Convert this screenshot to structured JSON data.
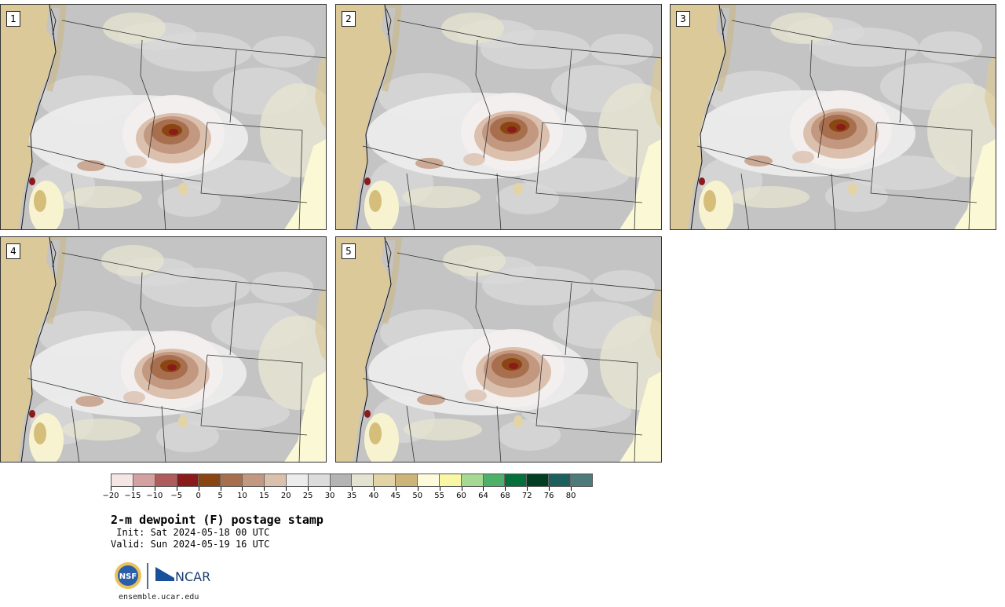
{
  "panels": [
    {
      "label": "1"
    },
    {
      "label": "2"
    },
    {
      "label": "3"
    },
    {
      "label": "4"
    },
    {
      "label": "5"
    }
  ],
  "colorbar": {
    "colors": [
      "#f5e6e6",
      "#d4a0a0",
      "#b05c5c",
      "#8b1a1a",
      "#8b4513",
      "#a86f4e",
      "#c39880",
      "#dcc0ae",
      "#ececec",
      "#dcdcdc",
      "#b4b4b4",
      "#e4e2d0",
      "#e2d4a6",
      "#cdb478",
      "#fefbdc",
      "#f8f7a4",
      "#a6d994",
      "#4fb06a",
      "#05703a",
      "#033e24",
      "#1d5e5e",
      "#4e7a7a"
    ],
    "tick_labels": [
      "−20",
      "−15",
      "−10",
      "−5",
      "0",
      "5",
      "10",
      "15",
      "20",
      "25",
      "30",
      "35",
      "40",
      "45",
      "50",
      "55",
      "60",
      "64",
      "68",
      "72",
      "76",
      "80"
    ]
  },
  "title": "2-m dewpoint (F) postage stamp",
  "init": " Init: Sat 2024-05-18 00 UTC",
  "valid": "Valid: Sun 2024-05-19 16 UTC",
  "logos": {
    "nsf": "NSF",
    "ncar": "NCAR"
  },
  "site": "ensemble.ucar.edu"
}
